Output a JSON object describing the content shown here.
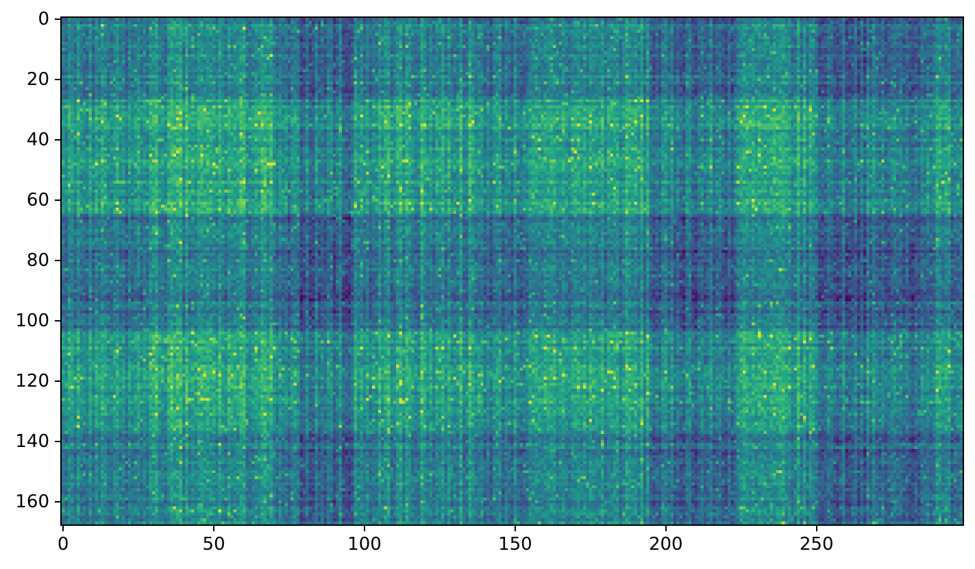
{
  "figure": {
    "background": "#ffffff",
    "title": "",
    "xlabel": "",
    "ylabel": ""
  },
  "axes": {
    "spine_color": "#000000",
    "tick_color": "#000000",
    "tick_label_color": "#000000"
  },
  "chart_data": {
    "type": "heatmap",
    "colormap": "viridis",
    "n_rows": 168,
    "n_cols": 299,
    "x_range": [
      -0.5,
      298.5
    ],
    "y_range": [
      -0.5,
      167.5
    ],
    "x_ticks": [
      0,
      50,
      100,
      150,
      200,
      250
    ],
    "y_ticks": [
      0,
      20,
      40,
      60,
      80,
      100,
      120,
      140,
      160
    ],
    "value_range": [
      0.03,
      0.97
    ],
    "pattern": "plaid block structure: outer sum of alternating bright/dark row bands and column bands with per-row, per-column and per-cell noise, occasional bright spikes",
    "row_bands": [
      {
        "start": 0,
        "end": 27,
        "level": 0.42
      },
      {
        "start": 27,
        "end": 65,
        "level": 0.68
      },
      {
        "start": 65,
        "end": 104,
        "level": 0.3
      },
      {
        "start": 104,
        "end": 138,
        "level": 0.66
      },
      {
        "start": 138,
        "end": 168,
        "level": 0.4
      }
    ],
    "col_bands": [
      {
        "start": 0,
        "end": 27,
        "level": 0.46
      },
      {
        "start": 27,
        "end": 71,
        "level": 0.63
      },
      {
        "start": 71,
        "end": 97,
        "level": 0.32
      },
      {
        "start": 97,
        "end": 136,
        "level": 0.61
      },
      {
        "start": 136,
        "end": 161,
        "level": 0.46
      },
      {
        "start": 161,
        "end": 195,
        "level": 0.6
      },
      {
        "start": 195,
        "end": 224,
        "level": 0.33
      },
      {
        "start": 224,
        "end": 250,
        "level": 0.58
      },
      {
        "start": 250,
        "end": 286,
        "level": 0.3
      },
      {
        "start": 286,
        "end": 299,
        "level": 0.5
      }
    ],
    "col_stripes": [
      {
        "col": 0,
        "delta": 0.08
      },
      {
        "col": 2,
        "delta": 0.12
      },
      {
        "col": 9,
        "delta": 0.1
      },
      {
        "col": 95,
        "delta": -0.1
      },
      {
        "col": 96,
        "delta": -0.12
      },
      {
        "col": 102,
        "delta": -0.12
      },
      {
        "col": 103,
        "delta": -0.08
      }
    ],
    "noise": {
      "row_factor": 0.08,
      "col_factor": 0.12,
      "cell": 0.11,
      "spike_prob": 0.055,
      "spike_amp": 0.22
    },
    "seed": 7
  }
}
